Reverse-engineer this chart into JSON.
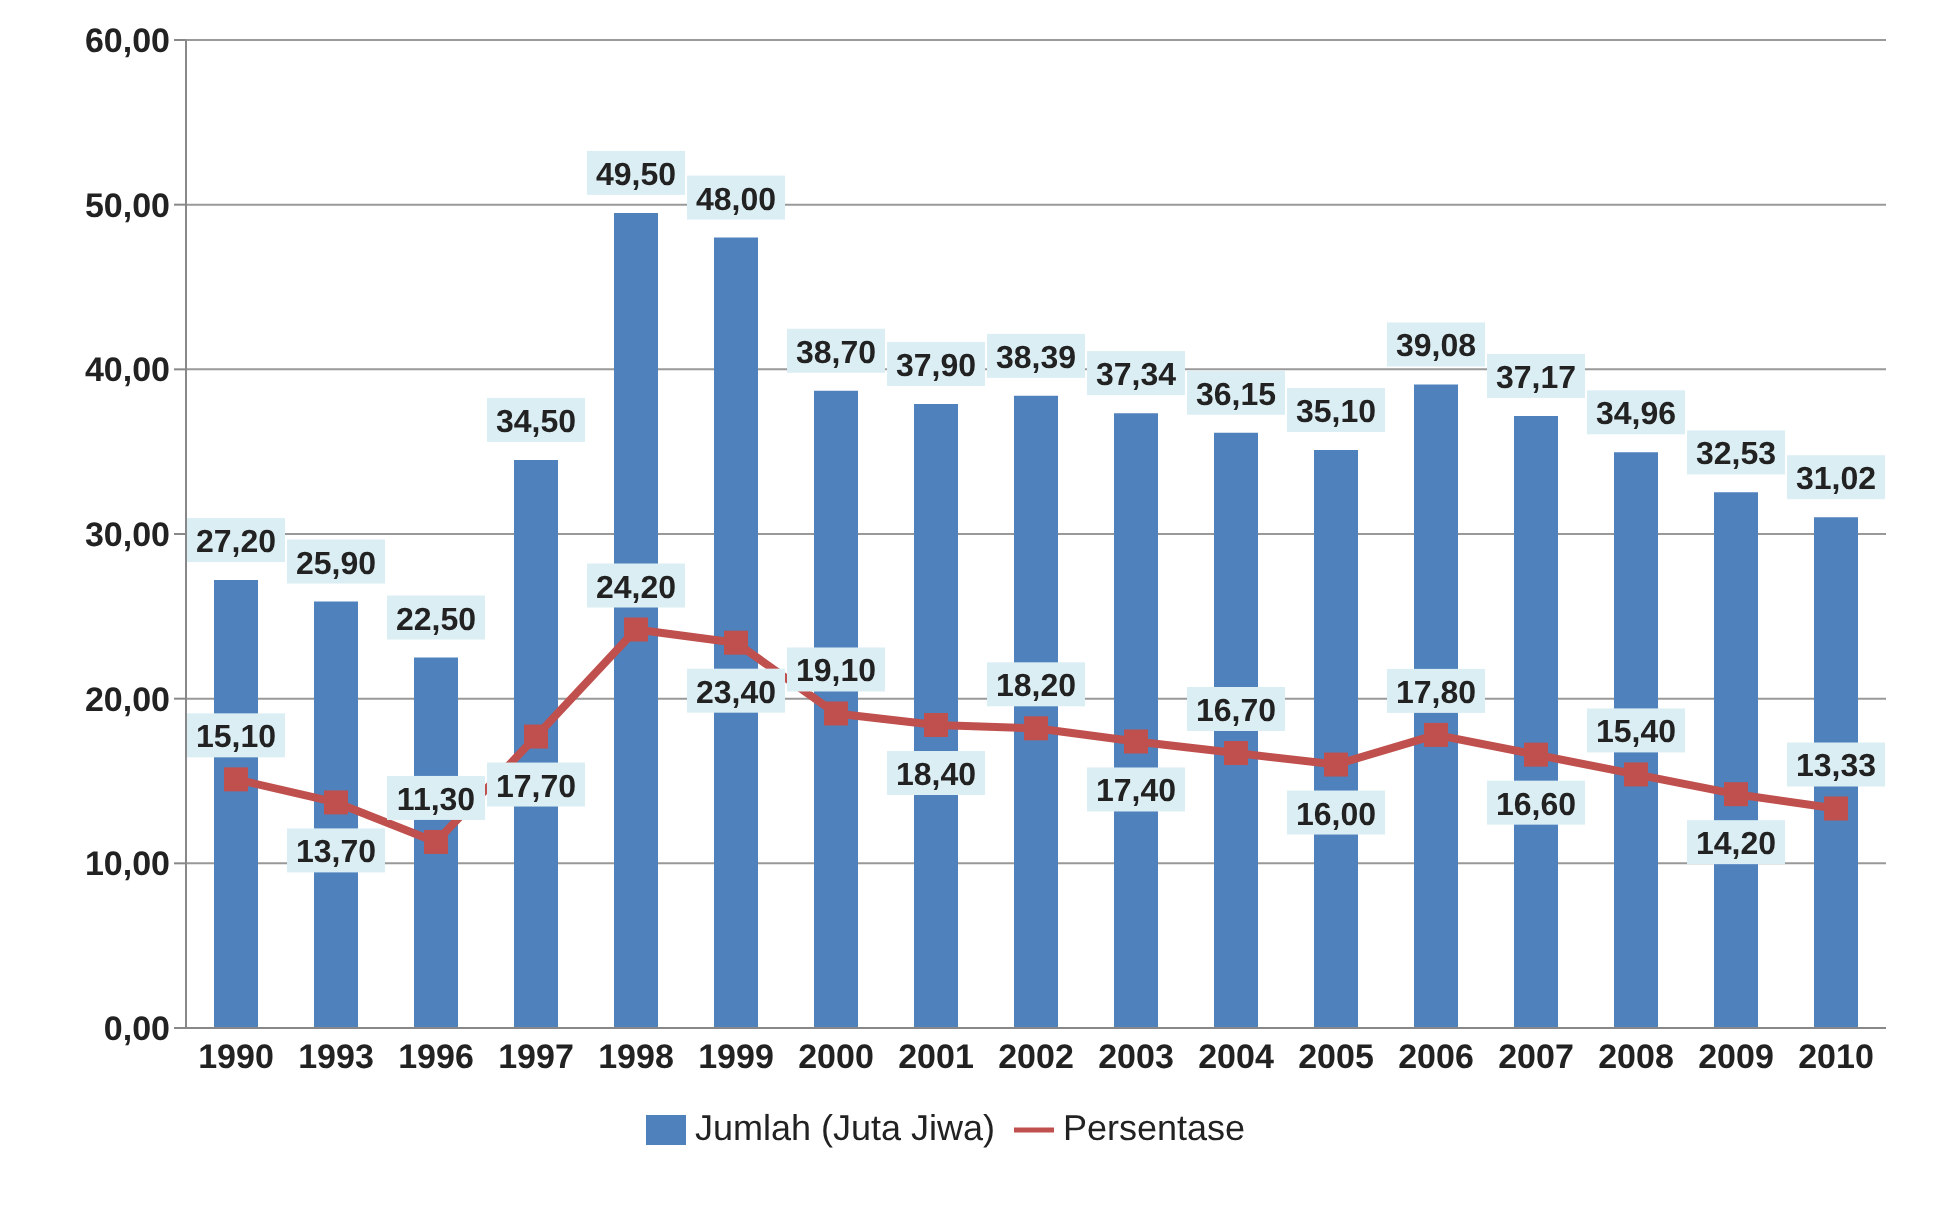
{
  "chart_data": {
    "type": "bar",
    "categories": [
      "1990",
      "1993",
      "1996",
      "1997",
      "1998",
      "1999",
      "2000",
      "2001",
      "2002",
      "2003",
      "2004",
      "2005",
      "2006",
      "2007",
      "2008",
      "2009",
      "2010"
    ],
    "series": [
      {
        "name": "Jumlah (Juta Jiwa)",
        "type": "bar",
        "color": "#4f81bd",
        "values": [
          27.2,
          25.9,
          22.5,
          34.5,
          49.5,
          48.0,
          38.7,
          37.9,
          38.39,
          37.34,
          36.15,
          35.1,
          39.08,
          37.17,
          34.96,
          32.53,
          31.02
        ],
        "value_labels": [
          "27,20",
          "25,90",
          "22,50",
          "34,50",
          "49,50",
          "48,00",
          "38,70",
          "37,90",
          "38,39",
          "37,34",
          "36,15",
          "35,10",
          "39,08",
          "37,17",
          "34,96",
          "32,53",
          "31,02"
        ]
      },
      {
        "name": "Persentase",
        "type": "line",
        "color": "#c0504d",
        "marker": "square",
        "values": [
          15.1,
          13.7,
          11.3,
          17.7,
          24.2,
          23.4,
          19.1,
          18.4,
          18.2,
          17.4,
          16.7,
          16.0,
          17.8,
          16.6,
          15.4,
          14.2,
          13.33
        ],
        "value_labels": [
          "15,10",
          "13,70",
          "11,30",
          "17,70",
          "24,20",
          "23,40",
          "19,10",
          "18,40",
          "18,20",
          "17,40",
          "16,70",
          "16,00",
          "17,80",
          "16,60",
          "15,40",
          "14,20",
          "13,33"
        ]
      }
    ],
    "ylim": [
      0,
      60
    ],
    "yticks": [
      {
        "value": 0,
        "label": "0,00"
      },
      {
        "value": 10,
        "label": "10,00"
      },
      {
        "value": 20,
        "label": "20,00"
      },
      {
        "value": 30,
        "label": "30,00"
      },
      {
        "value": 40,
        "label": "40,00"
      },
      {
        "value": 50,
        "label": "50,00"
      },
      {
        "value": 60,
        "label": "60,00"
      }
    ],
    "grid": "y",
    "legend": "bottom"
  }
}
